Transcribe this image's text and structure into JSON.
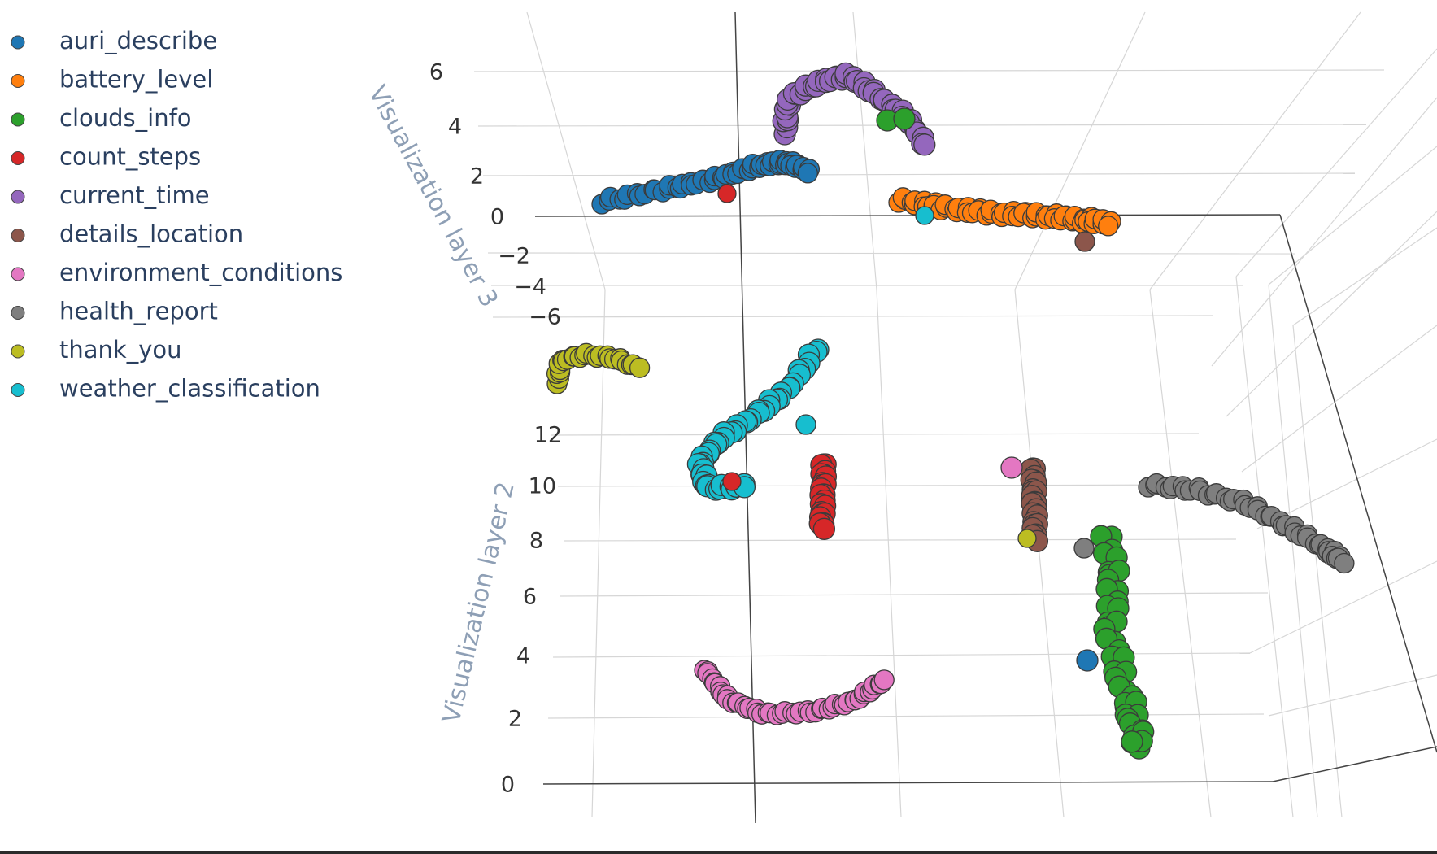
{
  "chart_data": {
    "type": "scatter",
    "projection": "3d",
    "legend_position": "top-left",
    "axes": {
      "y": {
        "title": "Visualization layer 2",
        "ticks": [
          0,
          2,
          4,
          6,
          8,
          10,
          12
        ]
      },
      "z": {
        "title": "Visualization layer 3",
        "ticks": [
          -6,
          -4,
          -2,
          0,
          2,
          4,
          6
        ]
      }
    },
    "series": [
      {
        "name": "auri_describe",
        "color": "#1f77b4"
      },
      {
        "name": "battery_level",
        "color": "#ff7f0e"
      },
      {
        "name": "clouds_info",
        "color": "#2ca02c"
      },
      {
        "name": "count_steps",
        "color": "#d62728"
      },
      {
        "name": "current_time",
        "color": "#9467bd"
      },
      {
        "name": "details_location",
        "color": "#8c564b"
      },
      {
        "name": "environment_conditions",
        "color": "#e377c2"
      },
      {
        "name": "health_report",
        "color": "#7f7f7f"
      },
      {
        "name": "thank_you",
        "color": "#bcbd22"
      },
      {
        "name": "weather_classification",
        "color": "#17becf"
      }
    ]
  }
}
